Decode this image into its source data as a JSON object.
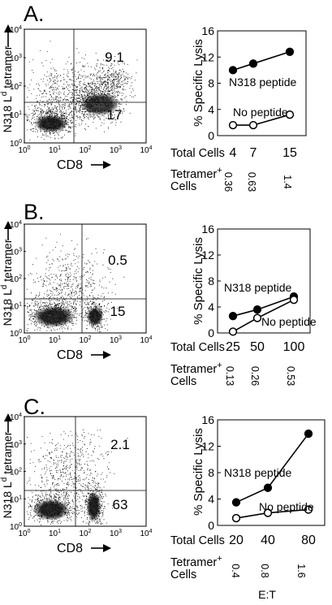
{
  "panels": [
    {
      "label": "A.",
      "flow": {
        "ylabel": "N318 L",
        "ylabel_sup": "d",
        "ylabel_tail": " tetramer",
        "xlabel": "CD8",
        "quad_upper_right": "9.1",
        "quad_lower_right": "17",
        "xticks": [
          "10",
          "10",
          "10",
          "10",
          "10"
        ],
        "xtick_exps": [
          "0",
          "1",
          "2",
          "3",
          "4"
        ],
        "yticks": [
          "10",
          "10",
          "10",
          "10",
          "10"
        ],
        "ytick_exps": [
          "0",
          "1",
          "2",
          "3",
          "4"
        ]
      },
      "lysis": {
        "ylabel": "% Specific Lysis",
        "yticks": [
          "0",
          "4",
          "8",
          "12",
          "16"
        ],
        "total_cells_label": "Total Cells",
        "total_cells": [
          "4",
          "7",
          "15"
        ],
        "tetramer_label": "Tetramer",
        "tetramer_sup": "+",
        "cells_label": "Cells",
        "tetramer_cells": [
          "0.36",
          "0.63",
          "1.4"
        ],
        "n318_label": "N318 peptide",
        "nopep_label": "No peptide"
      }
    },
    {
      "label": "B.",
      "flow": {
        "ylabel": "N318 L",
        "ylabel_sup": "d",
        "ylabel_tail": " tetramer",
        "xlabel": "CD8",
        "quad_upper_right": "0.5",
        "quad_lower_right": "15",
        "xticks": [
          "10",
          "10",
          "10",
          "10",
          "10"
        ],
        "xtick_exps": [
          "0",
          "1",
          "2",
          "3",
          "4"
        ],
        "yticks": [
          "10",
          "10",
          "10",
          "10",
          "10"
        ],
        "ytick_exps": [
          "0",
          "1",
          "2",
          "3",
          "4"
        ]
      },
      "lysis": {
        "ylabel": "% Specific Lysis",
        "yticks": [
          "0",
          "4",
          "8",
          "12",
          "16"
        ],
        "total_cells_label": "Total Cells",
        "total_cells": [
          "25",
          "50",
          "100"
        ],
        "tetramer_label": "Tetramer",
        "tetramer_sup": "+",
        "cells_label": "Cells",
        "tetramer_cells": [
          "0.13",
          "0.26",
          "0.53"
        ],
        "n318_label": "N318 peptide",
        "nopep_label": "No peptide"
      }
    },
    {
      "label": "C.",
      "flow": {
        "ylabel": "N318 L",
        "ylabel_sup": "d",
        "ylabel_tail": " tetramer",
        "xlabel": "CD8",
        "quad_upper_right": "2.1",
        "quad_lower_right": "63",
        "xticks": [
          "10",
          "10",
          "10",
          "10",
          "10"
        ],
        "xtick_exps": [
          "0",
          "1",
          "2",
          "3",
          "4"
        ],
        "yticks": [
          "10",
          "10",
          "10",
          "10",
          "10"
        ],
        "ytick_exps": [
          "0",
          "1",
          "2",
          "3",
          "4"
        ]
      },
      "lysis": {
        "ylabel": "% Specific Lysis",
        "yticks": [
          "0",
          "4",
          "8",
          "12",
          "16"
        ],
        "total_cells_label": "Total Cells",
        "total_cells": [
          "20",
          "40",
          "80"
        ],
        "tetramer_label": "Tetramer",
        "tetramer_sup": "+",
        "cells_label": "Cells",
        "tetramer_cells": [
          "0.4",
          "0.8",
          "1.6"
        ],
        "n318_label": "N318 peptide",
        "nopep_label": "No peptide"
      }
    }
  ],
  "bottom_label": "E:T",
  "chart_data": [
    {
      "type": "line",
      "ylabel": "% Specific Lysis",
      "ylim": [
        0,
        16
      ],
      "x": [
        "4",
        "7",
        "15"
      ],
      "series": [
        {
          "name": "N318 peptide",
          "values": [
            10.0,
            11.0,
            12.8
          ]
        },
        {
          "name": "No peptide",
          "values": [
            1.6,
            1.6,
            3.2
          ]
        }
      ]
    },
    {
      "type": "line",
      "ylabel": "% Specific Lysis",
      "ylim": [
        0,
        16
      ],
      "x": [
        "25",
        "50",
        "100"
      ],
      "series": [
        {
          "name": "N318 peptide",
          "values": [
            2.6,
            3.6,
            5.6
          ]
        },
        {
          "name": "No peptide",
          "values": [
            0.2,
            2.3,
            5.1
          ]
        }
      ]
    },
    {
      "type": "line",
      "ylabel": "% Specific Lysis",
      "ylim": [
        0,
        16
      ],
      "x": [
        "20",
        "40",
        "80"
      ],
      "series": [
        {
          "name": "N318 peptide",
          "values": [
            3.5,
            5.7,
            13.9
          ]
        },
        {
          "name": "No peptide",
          "values": [
            1.1,
            1.9,
            2.4
          ]
        }
      ]
    }
  ]
}
